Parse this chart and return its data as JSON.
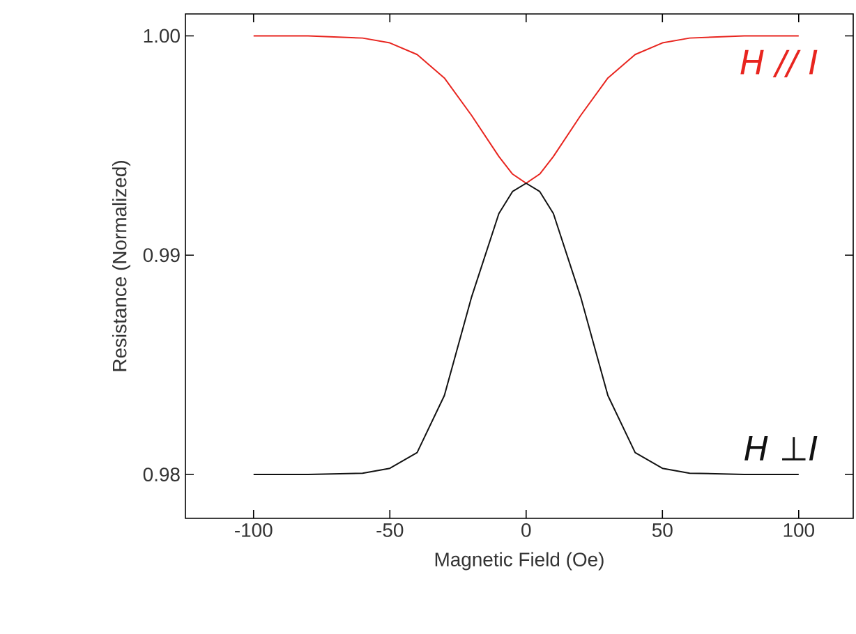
{
  "chart_data": {
    "type": "line",
    "xlabel": "Magnetic Field (Oe)",
    "ylabel": "Resistance (Normalized)",
    "xlim": [
      -125,
      120
    ],
    "ylim": [
      0.978,
      1.001
    ],
    "xticks": [
      -100,
      -50,
      0,
      50,
      100
    ],
    "yticks": [
      {
        "value": 0.98,
        "label": "0.98"
      },
      {
        "value": 0.99,
        "label": "0.99"
      },
      {
        "value": 1.0,
        "label": "1.00"
      }
    ],
    "x": [
      -100,
      -80,
      -60,
      -50,
      -40,
      -30,
      -20,
      -10,
      -5,
      0,
      5,
      10,
      20,
      30,
      40,
      50,
      60,
      80,
      100
    ],
    "series": [
      {
        "name": "H // I",
        "color": "#e8251f",
        "values": [
          1.0,
          1.0,
          0.9999,
          0.99968,
          0.99915,
          0.99808,
          0.99637,
          0.9945,
          0.9937,
          0.99328,
          0.9937,
          0.9945,
          0.99637,
          0.99808,
          0.99915,
          0.99968,
          0.9999,
          1.0,
          1.0
        ]
      },
      {
        "name": "H ⊥I",
        "color": "#111111",
        "values": [
          0.98,
          0.98,
          0.98006,
          0.98028,
          0.981,
          0.9836,
          0.9881,
          0.9919,
          0.9929,
          0.99328,
          0.9929,
          0.9919,
          0.9881,
          0.9836,
          0.981,
          0.98028,
          0.98006,
          0.98,
          0.98
        ]
      }
    ],
    "marker": "none",
    "line_style": "solid",
    "grid": false,
    "legend": false
  }
}
